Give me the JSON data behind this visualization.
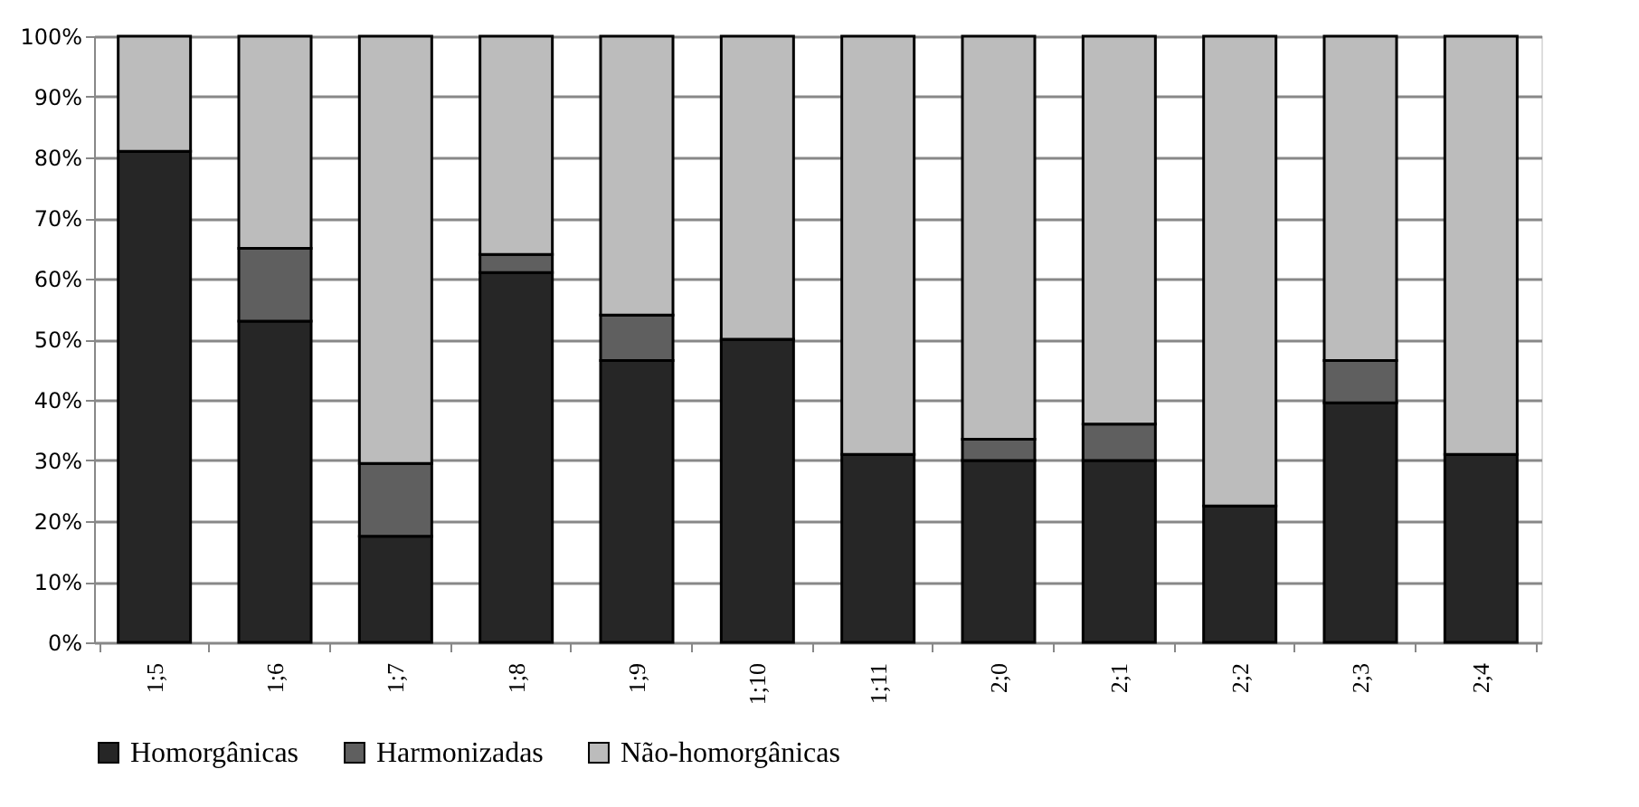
{
  "chart_data": {
    "type": "bar",
    "stacked": true,
    "categories": [
      "1;5",
      "1;6",
      "1;7",
      "1;8",
      "1;9",
      "1;10",
      "1;11",
      "2;0",
      "2;1",
      "2;2",
      "2;3",
      "2;4"
    ],
    "series": [
      {
        "name": "Homorgânicas",
        "color": "#262626",
        "values": [
          81,
          53,
          17.5,
          61,
          46.5,
          50,
          31,
          30,
          30,
          22.5,
          39.5,
          31
        ]
      },
      {
        "name": "Harmonizadas",
        "color": "#5f5f5f",
        "values": [
          0,
          12,
          12,
          3,
          7.5,
          0,
          0,
          3.5,
          6,
          0,
          7,
          0
        ]
      },
      {
        "name": "Não-homorgânicas",
        "color": "#bcbcbc",
        "values": [
          19,
          35,
          70.5,
          36,
          46,
          50,
          69,
          66.5,
          64,
          77.5,
          53.5,
          69
        ]
      }
    ],
    "ylim": [
      0,
      100
    ],
    "yticks": [
      {
        "value": 0,
        "label": "0%"
      },
      {
        "value": 10,
        "label": "10%"
      },
      {
        "value": 20,
        "label": "20%"
      },
      {
        "value": 30,
        "label": "30%"
      },
      {
        "value": 40,
        "label": "40%"
      },
      {
        "value": 50,
        "label": "50%"
      },
      {
        "value": 60,
        "label": "60%"
      },
      {
        "value": 70,
        "label": "70%"
      },
      {
        "value": 80,
        "label": "80%"
      },
      {
        "value": 90,
        "label": "90%"
      },
      {
        "value": 100,
        "label": "100%"
      }
    ],
    "grid": "y",
    "legend": "bottom"
  }
}
